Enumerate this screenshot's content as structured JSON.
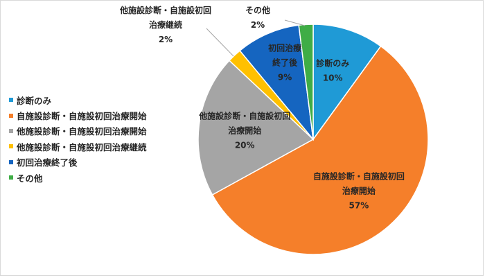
{
  "chart_data": {
    "type": "pie",
    "title": "",
    "legend_position": "left",
    "slices": [
      {
        "name": "診断のみ",
        "value": 10,
        "label": "10%",
        "color": "#1f9ad6",
        "label_lines": [
          "診断のみ"
        ]
      },
      {
        "name": "自施設診断・自施設初回治療開始",
        "value": 57,
        "label": "57%",
        "color": "#f57f2a",
        "label_lines": [
          "自施設診断・自施設初回",
          "治療開始"
        ]
      },
      {
        "name": "他施設診断・自施設初回治療開始",
        "value": 20,
        "label": "20%",
        "color": "#a5a5a5",
        "label_lines": [
          "他施設診断・自施設初回",
          "治療開始"
        ]
      },
      {
        "name": "他施設診断・自施設初回治療継続",
        "value": 2,
        "label": "2%",
        "color": "#ffc000",
        "label_lines": [
          "他施設診断・自施設初回",
          "治療継続"
        ]
      },
      {
        "name": "初回治療終了後",
        "value": 9,
        "label": "9%",
        "color": "#1565c0",
        "label_lines": [
          "初回治療",
          "終了後"
        ]
      },
      {
        "name": "その他",
        "value": 2,
        "label": "2%",
        "color": "#3fad46",
        "label_lines": [
          "その他"
        ]
      }
    ]
  }
}
